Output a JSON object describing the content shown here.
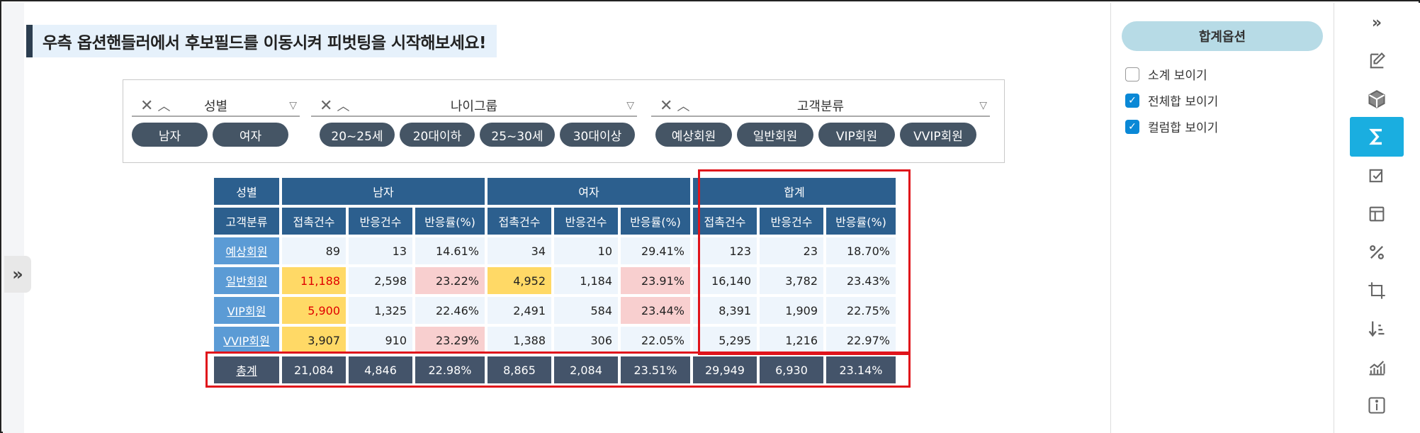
{
  "banner": {
    "text": "우측 옵션핸들러에서 후보필드를 이동시켜 피벗팅을 시작해보세요!"
  },
  "filters": [
    {
      "name": "성별",
      "items": [
        "남자",
        "여자"
      ]
    },
    {
      "name": "나이그룹",
      "items": [
        "20~25세",
        "20대이하",
        "25~30세",
        "30대이상"
      ]
    },
    {
      "name": "고객분류",
      "items": [
        "예상회원",
        "일반회원",
        "VIP회원",
        "VVIP회원"
      ]
    }
  ],
  "filter_glyphs": {
    "remove": "✕",
    "collapse": "︿",
    "funnel": "▽"
  },
  "pivot": {
    "corner_top": "성별",
    "corner_sub": "고객분류",
    "groups": [
      "남자",
      "여자",
      "합계"
    ],
    "metrics": [
      "접촉건수",
      "반응건수",
      "반응률(%)"
    ],
    "rows": [
      {
        "label": "예상회원",
        "values": [
          "89",
          "13",
          "14.61%",
          "34",
          "10",
          "29.41%",
          "123",
          "23",
          "18.70%"
        ]
      },
      {
        "label": "일반회원",
        "values": [
          "11,188",
          "2,598",
          "23.22%",
          "4,952",
          "1,184",
          "23.91%",
          "16,140",
          "3,782",
          "23.43%"
        ]
      },
      {
        "label": "VIP회원",
        "values": [
          "5,900",
          "1,325",
          "22.46%",
          "2,491",
          "584",
          "23.44%",
          "8,391",
          "1,909",
          "22.75%"
        ]
      },
      {
        "label": "VVIP회원",
        "values": [
          "3,907",
          "910",
          "23.29%",
          "1,388",
          "306",
          "22.05%",
          "5,295",
          "1,216",
          "22.97%"
        ]
      }
    ],
    "total": {
      "label": "총계",
      "values": [
        "21,084",
        "4,846",
        "22.98%",
        "8,865",
        "2,084",
        "23.51%",
        "29,949",
        "6,930",
        "23.14%"
      ]
    }
  },
  "colors": {
    "header": "#2c5f8e",
    "row_header": "#5b9bd5",
    "cell": "#eef5fc",
    "highlight_yellow": "#ffd966",
    "highlight_pink": "#f8cfcf",
    "total": "#44546a",
    "callout": "#e0141b",
    "active_tool": "#1aaee0"
  },
  "options_panel": {
    "title": "합계옵션",
    "options": [
      {
        "label": "소계 보이기",
        "checked": false
      },
      {
        "label": "전체합 보이기",
        "checked": true
      },
      {
        "label": "컬럼합 보이기",
        "checked": true
      }
    ]
  },
  "left_toggle": "»",
  "rail": {
    "collapse_glyph": "»",
    "icons": [
      "edit-icon",
      "cube-icon",
      "sigma-icon",
      "checklist-icon",
      "layout-icon",
      "percent-icon",
      "crop-icon",
      "sort-desc-icon",
      "line-chart-icon",
      "info-icon"
    ],
    "active": "sigma-icon"
  }
}
